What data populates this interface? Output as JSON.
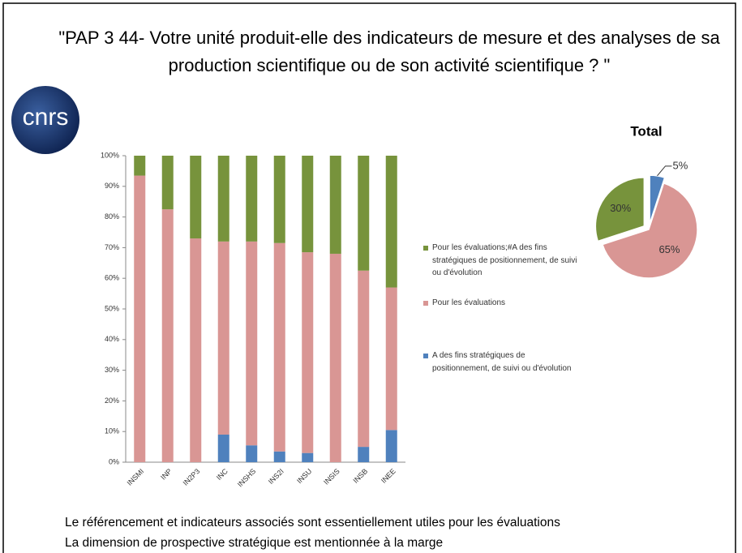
{
  "title": "\"PAP 3 44- Votre unité produit-elle des indicateurs de mesure et des analyses de sa production scientifique ou de son activité scientifique ? \"",
  "logo": "cnrs",
  "notes": [
    "Le référencement  et indicateurs associés sont essentiellement  utiles pour les évaluations",
    "La dimension de prospective stratégique est mentionnée à la marge"
  ],
  "chart_data": [
    {
      "type": "bar",
      "categories": [
        "INSMI",
        "INP",
        "IN2P3",
        "INC",
        "INSHS",
        "INS2I",
        "INSU",
        "INSIS",
        "INSB",
        "INEE"
      ],
      "series": [
        {
          "name": "A des fins stratégiques de positionnement, de suivi ou d'évolution",
          "color": "#4f81bd",
          "values": [
            0,
            0,
            0,
            9,
            5.5,
            3.5,
            3,
            0,
            5,
            10.5
          ]
        },
        {
          "name": "Pour les évaluations",
          "color": "#d99694",
          "values": [
            93.5,
            82.5,
            73,
            63,
            66.5,
            68,
            65.5,
            68,
            57.5,
            46.5
          ]
        },
        {
          "name": "Pour les évaluations;#A des fins stratégiques de positionnement, de suivi ou d'évolution",
          "color": "#77933c",
          "values": [
            6.5,
            17.5,
            27,
            28,
            28,
            28.5,
            31.5,
            32,
            37.5,
            43
          ]
        }
      ],
      "ylim": [
        0,
        100
      ],
      "yticks": [
        {
          "value": 0,
          "label": "0%"
        },
        {
          "value": 10,
          "label": "10%"
        },
        {
          "value": 20,
          "label": "20%"
        },
        {
          "value": 30,
          "label": "30%"
        },
        {
          "value": 40,
          "label": "40%"
        },
        {
          "value": 50,
          "label": "50%"
        },
        {
          "value": 60,
          "label": "60%"
        },
        {
          "value": 70,
          "label": "70%"
        },
        {
          "value": 80,
          "label": "80%"
        },
        {
          "value": 90,
          "label": "90%"
        },
        {
          "value": 100,
          "label": "100%"
        }
      ],
      "stacked": true
    },
    {
      "type": "pie",
      "title": "Total",
      "values": [
        5,
        65,
        30
      ],
      "value_labels": [
        "5%",
        "65%",
        "30%"
      ],
      "colors": [
        "#4f81bd",
        "#d99694",
        "#77933c"
      ]
    }
  ]
}
